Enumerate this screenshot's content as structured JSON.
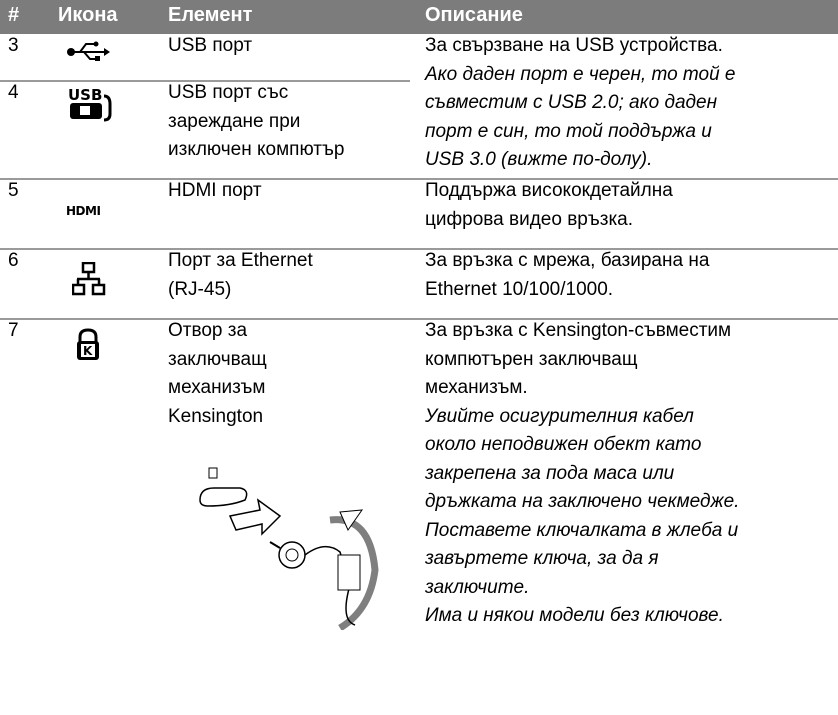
{
  "header": {
    "number": "#",
    "icon": "Икона",
    "element": "Елемент",
    "description": "Описание"
  },
  "rows": [
    {
      "number": "3",
      "element": [
        "USB порт"
      ]
    },
    {
      "number": "4",
      "element": [
        "USB порт със",
        "зареждане при",
        "изключен компютър"
      ]
    },
    {
      "number": "5",
      "element": [
        "HDMI порт"
      ]
    },
    {
      "number": "6",
      "element": [
        "Порт за Ethernet",
        "(RJ-45)"
      ]
    },
    {
      "number": "7",
      "element": [
        "Отвор за",
        "заключващ",
        "механизъм",
        "Kensington"
      ]
    }
  ],
  "descriptions": [
    {
      "text": [
        "За свързване на USB устройства."
      ],
      "note": [
        "Ако даден порт е черен, то той е",
        "съвместим с USB 2.0; ако даден",
        "порт е син, то той поддържа и",
        "USB 3.0 (вижте по-долу)."
      ]
    },
    {
      "text": [
        "Поддържа висококдетайлна",
        "цифрова видео връзка."
      ]
    },
    {
      "text": [
        "За връзка с мрежа, базирана на",
        "Ethernet 10/100/1000."
      ]
    },
    {
      "text": [
        "За връзка с Kensington-съвместим",
        "компютърен заключващ",
        "механизъм."
      ],
      "note": [
        "Увийте осигурителния кабел",
        "около неподвижен обект като",
        "закрепена за пода маса или",
        "дръжката на заключено чекмедже.",
        "Поставете ключалката в жлеба и",
        "завъртете ключа, за да я",
        "заключите.",
        "Има и някои модели без ключове."
      ]
    }
  ]
}
